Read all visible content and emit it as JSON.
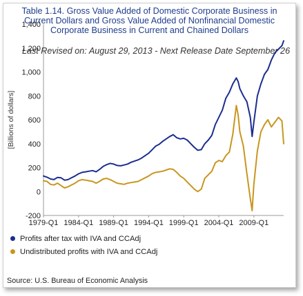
{
  "chart_data": {
    "type": "line",
    "title": [
      "Table 1.14. Gross Value Added of Domestic Corporate Business in",
      "Current Dollars and Gross Value Added of Nonfinancial Domestic",
      "Corporate Business in Current and Chained Dollars"
    ],
    "subtitle": "Last Revised on: August 29, 2013 - Next Release Date September 26",
    "ylabel": "[Billions of dollars]",
    "xlabel": "",
    "ylim": [
      -200,
      1400
    ],
    "yticks": [
      -200,
      0,
      200,
      400,
      600,
      800,
      "1,000",
      "1,200",
      "1,400"
    ],
    "xticks": [
      "1979-Q1",
      "1984-Q1",
      "1989-Q1",
      "1994-Q1",
      "1999-Q1",
      "2004-Q1",
      "2009-Q1"
    ],
    "xrange": [
      1979.0,
      2013.25
    ],
    "grid": false,
    "legend_position": "bottom",
    "series": [
      {
        "name": "Profits after tax with IVA and CCAdj",
        "color": "#1b2d8f",
        "points": [
          [
            1979.0,
            130
          ],
          [
            1979.5,
            120
          ],
          [
            1980.0,
            105
          ],
          [
            1980.5,
            100
          ],
          [
            1981.0,
            118
          ],
          [
            1981.5,
            115
          ],
          [
            1982.0,
            95
          ],
          [
            1982.5,
            100
          ],
          [
            1983.0,
            115
          ],
          [
            1983.5,
            130
          ],
          [
            1984.0,
            148
          ],
          [
            1984.5,
            160
          ],
          [
            1985.0,
            165
          ],
          [
            1985.5,
            170
          ],
          [
            1986.0,
            175
          ],
          [
            1986.5,
            165
          ],
          [
            1987.0,
            185
          ],
          [
            1987.5,
            210
          ],
          [
            1988.0,
            225
          ],
          [
            1988.5,
            235
          ],
          [
            1989.0,
            230
          ],
          [
            1989.5,
            218
          ],
          [
            1990.0,
            215
          ],
          [
            1990.5,
            222
          ],
          [
            1991.0,
            230
          ],
          [
            1991.5,
            245
          ],
          [
            1992.0,
            255
          ],
          [
            1992.5,
            265
          ],
          [
            1993.0,
            280
          ],
          [
            1993.5,
            300
          ],
          [
            1994.0,
            320
          ],
          [
            1994.5,
            350
          ],
          [
            1995.0,
            380
          ],
          [
            1995.5,
            395
          ],
          [
            1996.0,
            420
          ],
          [
            1996.5,
            440
          ],
          [
            1997.0,
            460
          ],
          [
            1997.5,
            475
          ],
          [
            1998.0,
            450
          ],
          [
            1998.5,
            440
          ],
          [
            1999.0,
            445
          ],
          [
            1999.5,
            430
          ],
          [
            2000.0,
            400
          ],
          [
            2000.5,
            370
          ],
          [
            2001.0,
            345
          ],
          [
            2001.5,
            350
          ],
          [
            2002.0,
            400
          ],
          [
            2002.5,
            430
          ],
          [
            2003.0,
            470
          ],
          [
            2003.5,
            560
          ],
          [
            2004.0,
            620
          ],
          [
            2004.5,
            680
          ],
          [
            2005.0,
            780
          ],
          [
            2005.5,
            830
          ],
          [
            2006.0,
            900
          ],
          [
            2006.5,
            950
          ],
          [
            2006.75,
            920
          ],
          [
            2007.0,
            860
          ],
          [
            2007.5,
            800
          ],
          [
            2008.0,
            750
          ],
          [
            2008.5,
            620
          ],
          [
            2008.75,
            460
          ],
          [
            2009.0,
            580
          ],
          [
            2009.5,
            800
          ],
          [
            2010.0,
            900
          ],
          [
            2010.5,
            980
          ],
          [
            2011.0,
            1020
          ],
          [
            2011.5,
            1100
          ],
          [
            2012.0,
            1160
          ],
          [
            2012.5,
            1190
          ],
          [
            2013.0,
            1220
          ],
          [
            2013.25,
            1260
          ]
        ]
      },
      {
        "name": "Undistributed profits with IVA and CCAdj",
        "color": "#c8961e",
        "points": [
          [
            1979.0,
            90
          ],
          [
            1979.5,
            85
          ],
          [
            1980.0,
            60
          ],
          [
            1980.5,
            55
          ],
          [
            1981.0,
            70
          ],
          [
            1981.5,
            50
          ],
          [
            1982.0,
            30
          ],
          [
            1982.5,
            40
          ],
          [
            1983.0,
            55
          ],
          [
            1983.5,
            70
          ],
          [
            1984.0,
            90
          ],
          [
            1984.5,
            100
          ],
          [
            1985.0,
            95
          ],
          [
            1985.5,
            90
          ],
          [
            1986.0,
            85
          ],
          [
            1986.5,
            70
          ],
          [
            1987.0,
            85
          ],
          [
            1987.5,
            105
          ],
          [
            1988.0,
            110
          ],
          [
            1988.5,
            100
          ],
          [
            1989.0,
            85
          ],
          [
            1989.5,
            70
          ],
          [
            1990.0,
            65
          ],
          [
            1990.5,
            60
          ],
          [
            1991.0,
            70
          ],
          [
            1991.5,
            75
          ],
          [
            1992.0,
            80
          ],
          [
            1992.5,
            85
          ],
          [
            1993.0,
            100
          ],
          [
            1993.5,
            115
          ],
          [
            1994.0,
            130
          ],
          [
            1994.5,
            150
          ],
          [
            1995.0,
            160
          ],
          [
            1995.5,
            165
          ],
          [
            1996.0,
            170
          ],
          [
            1996.5,
            180
          ],
          [
            1997.0,
            190
          ],
          [
            1997.5,
            185
          ],
          [
            1998.0,
            160
          ],
          [
            1998.5,
            130
          ],
          [
            1999.0,
            110
          ],
          [
            1999.5,
            80
          ],
          [
            2000.0,
            50
          ],
          [
            2000.5,
            20
          ],
          [
            2001.0,
            0
          ],
          [
            2001.5,
            20
          ],
          [
            2002.0,
            110
          ],
          [
            2002.5,
            140
          ],
          [
            2003.0,
            170
          ],
          [
            2003.5,
            240
          ],
          [
            2004.0,
            260
          ],
          [
            2004.5,
            250
          ],
          [
            2005.0,
            300
          ],
          [
            2005.5,
            330
          ],
          [
            2006.0,
            480
          ],
          [
            2006.5,
            720
          ],
          [
            2006.75,
            640
          ],
          [
            2007.0,
            500
          ],
          [
            2007.5,
            380
          ],
          [
            2008.0,
            150
          ],
          [
            2008.5,
            -60
          ],
          [
            2008.75,
            -160
          ],
          [
            2009.0,
            60
          ],
          [
            2009.5,
            340
          ],
          [
            2010.0,
            500
          ],
          [
            2010.5,
            560
          ],
          [
            2011.0,
            600
          ],
          [
            2011.5,
            540
          ],
          [
            2012.0,
            580
          ],
          [
            2012.5,
            620
          ],
          [
            2013.0,
            590
          ],
          [
            2013.25,
            400
          ]
        ]
      }
    ]
  },
  "source": "Source: U.S. Bureau of Economic Analysis"
}
